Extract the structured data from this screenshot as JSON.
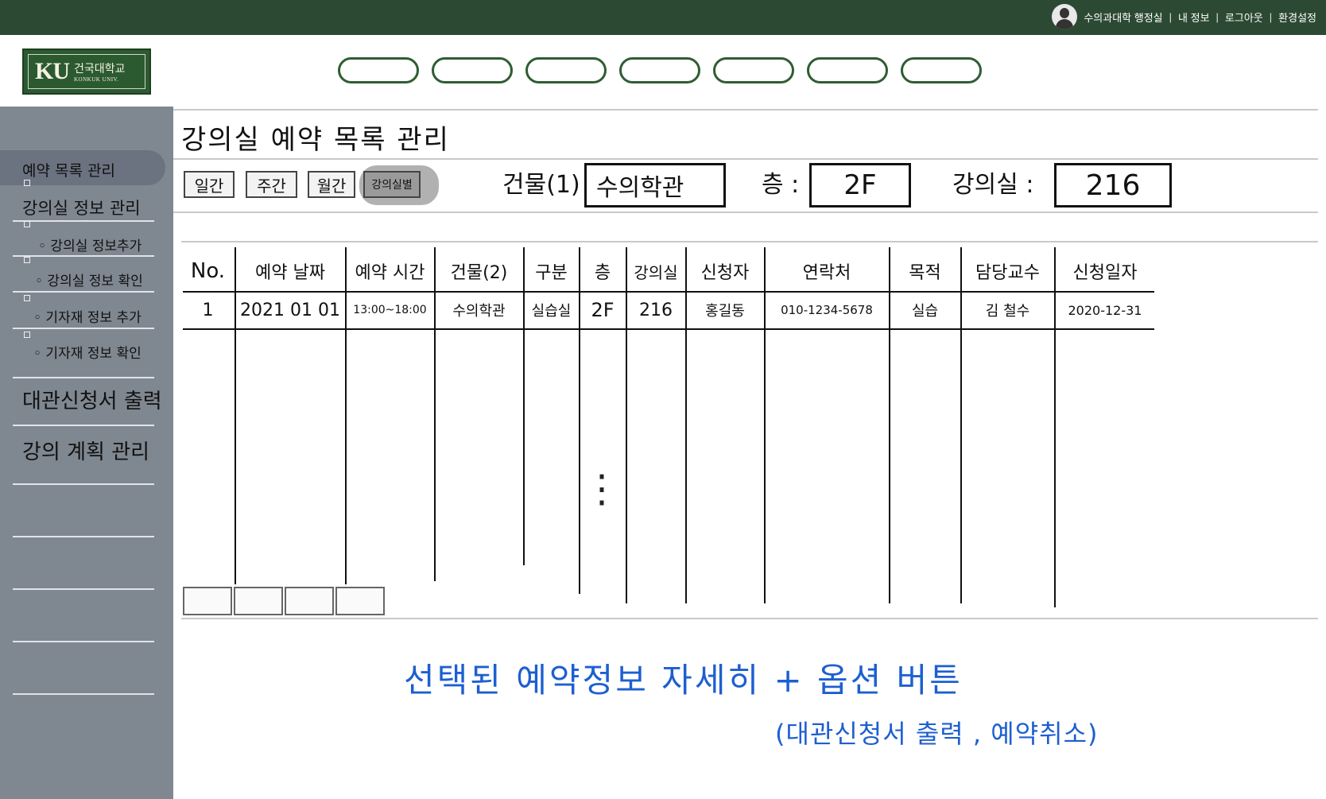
{
  "topbar": {
    "user_name": "수의과대학 행정실",
    "links": [
      "내 정보",
      "로그아웃",
      "환경설정"
    ]
  },
  "logo": {
    "ku": "KU",
    "kr": "건국대학교",
    "en": "KONKUK UNIV."
  },
  "nav": {
    "pill_count": 7
  },
  "sidebar": {
    "items": [
      {
        "label": "예약 목록 관리"
      },
      {
        "label": "강의실 정보 관리"
      },
      {
        "label": "◦ 강의실 정보추가"
      },
      {
        "label": "◦ 강의실 정보 확인"
      },
      {
        "label": "◦ 기자재 정보 추가"
      },
      {
        "label": "◦ 기자재 정보 확인"
      },
      {
        "label": "대관신청서 출력"
      },
      {
        "label": "강의 계획 관리"
      }
    ]
  },
  "page": {
    "title": "강의실 예약 목록 관리"
  },
  "period_buttons": [
    "일간",
    "주간",
    "월간",
    "강의실별"
  ],
  "filters": {
    "building_label": "건물(1) :",
    "building_value": "수의학관",
    "floor_label": "층 :",
    "floor_value": "2F",
    "room_label": "강의실 :",
    "room_value": "216"
  },
  "table": {
    "headers": [
      "No.",
      "예약 날짜",
      "예약 시간",
      "건물(2)",
      "구분",
      "층",
      "강의실",
      "신청자",
      "연락처",
      "목적",
      "담당교수",
      "신청일자"
    ],
    "rows": [
      [
        "1",
        "2021 01 01",
        "13:00~18:00",
        "수의학관",
        "실습실",
        "2F",
        "216",
        "홍길동",
        "010-1234-5678",
        "실습",
        "김 철수",
        "2020-12-31"
      ]
    ],
    "ellipsis": "⋮"
  },
  "annotations": {
    "line1": "선택된 예약정보 자세히 + 옵션 버튼",
    "line2": "(대관신청서 출력 , 예약취소)"
  },
  "colors": {
    "topbar": "#2c4a33",
    "sidebar": "#7f8791",
    "note": "#1d5fd0",
    "accent": "#2f5d33"
  }
}
